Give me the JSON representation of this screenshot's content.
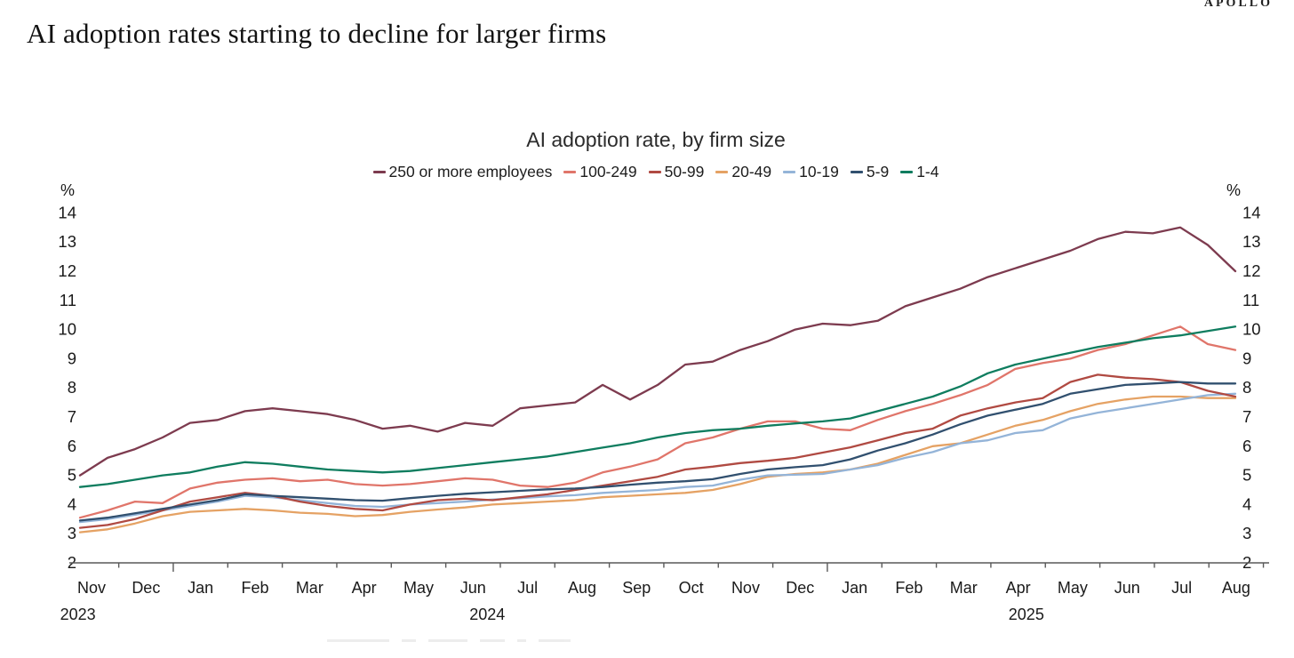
{
  "header": {
    "title": "AI adoption rates starting to decline for larger firms",
    "logo": "APOLLO"
  },
  "chart_data": {
    "type": "line",
    "title": "AI adoption rate, by firm size",
    "y_unit": "%",
    "ylim": [
      2,
      14
    ],
    "y_ticks": [
      2,
      3,
      4,
      5,
      6,
      7,
      8,
      9,
      10,
      11,
      12,
      13,
      14
    ],
    "grid": false,
    "legend_position": "top",
    "x_start": "Nov 2023",
    "x_end": "Aug 2025",
    "points_per_month": 2,
    "x_month_labels": [
      "Nov",
      "Dec",
      "Jan",
      "Feb",
      "Mar",
      "Apr",
      "May",
      "Jun",
      "Jul",
      "Aug",
      "Sep",
      "Oct",
      "Nov",
      "Dec",
      "Jan",
      "Feb",
      "Mar",
      "Apr",
      "May",
      "Jun",
      "Jul",
      "Aug"
    ],
    "x_year_labels": [
      {
        "label": "2023",
        "position_month_index": -0.25
      },
      {
        "label": "2024",
        "position_month_index": 7.26
      },
      {
        "label": "2025",
        "position_month_index": 17.15
      }
    ],
    "series": [
      {
        "name": "250 or more employees",
        "color": "#7d3b4f",
        "values": [
          5.0,
          5.6,
          5.9,
          6.3,
          6.8,
          6.9,
          7.2,
          7.3,
          7.2,
          7.1,
          6.9,
          6.6,
          6.7,
          6.5,
          6.8,
          6.7,
          7.3,
          7.4,
          7.5,
          8.1,
          7.6,
          8.1,
          8.8,
          8.9,
          9.3,
          9.6,
          10.0,
          10.2,
          10.15,
          10.3,
          10.8,
          11.1,
          11.4,
          11.8,
          12.1,
          12.4,
          12.7,
          13.1,
          13.35,
          13.3,
          13.5,
          12.9,
          12.0
        ]
      },
      {
        "name": "100-249",
        "color": "#e0756a",
        "values": [
          3.55,
          3.8,
          4.1,
          4.05,
          4.55,
          4.75,
          4.85,
          4.9,
          4.8,
          4.85,
          4.7,
          4.65,
          4.7,
          4.8,
          4.9,
          4.85,
          4.65,
          4.6,
          4.75,
          5.1,
          5.3,
          5.55,
          6.1,
          6.3,
          6.6,
          6.85,
          6.85,
          6.6,
          6.55,
          6.9,
          7.2,
          7.45,
          7.75,
          8.1,
          8.65,
          8.85,
          9.0,
          9.3,
          9.5,
          9.8,
          10.1,
          9.5,
          9.3
        ]
      },
      {
        "name": "50-99",
        "color": "#b04a42",
        "values": [
          3.2,
          3.3,
          3.5,
          3.8,
          4.1,
          4.25,
          4.4,
          4.3,
          4.1,
          3.95,
          3.85,
          3.8,
          4.0,
          4.15,
          4.2,
          4.15,
          4.25,
          4.35,
          4.5,
          4.65,
          4.8,
          4.95,
          5.2,
          5.3,
          5.42,
          5.5,
          5.6,
          5.78,
          5.96,
          6.2,
          6.45,
          6.6,
          7.05,
          7.3,
          7.5,
          7.65,
          8.2,
          8.45,
          8.35,
          8.3,
          8.2,
          7.9,
          7.7
        ]
      },
      {
        "name": "20-49",
        "color": "#e5a264",
        "values": [
          3.05,
          3.15,
          3.35,
          3.6,
          3.75,
          3.8,
          3.85,
          3.8,
          3.72,
          3.68,
          3.6,
          3.64,
          3.75,
          3.83,
          3.9,
          4.0,
          4.05,
          4.1,
          4.15,
          4.25,
          4.3,
          4.35,
          4.4,
          4.5,
          4.7,
          4.95,
          5.05,
          5.1,
          5.2,
          5.4,
          5.7,
          6.0,
          6.1,
          6.4,
          6.7,
          6.9,
          7.2,
          7.45,
          7.6,
          7.7,
          7.7,
          7.65,
          7.65
        ]
      },
      {
        "name": "10-19",
        "color": "#94b4d8",
        "values": [
          3.4,
          3.5,
          3.65,
          3.8,
          3.95,
          4.1,
          4.3,
          4.25,
          4.15,
          4.05,
          3.95,
          3.92,
          4.0,
          4.05,
          4.1,
          4.17,
          4.22,
          4.28,
          4.32,
          4.4,
          4.45,
          4.5,
          4.6,
          4.65,
          4.85,
          5.0,
          5.02,
          5.05,
          5.2,
          5.35,
          5.6,
          5.8,
          6.1,
          6.2,
          6.45,
          6.55,
          6.95,
          7.15,
          7.3,
          7.45,
          7.6,
          7.75,
          7.8
        ]
      },
      {
        "name": "5-9",
        "color": "#31506f",
        "values": [
          3.45,
          3.55,
          3.7,
          3.85,
          4.0,
          4.15,
          4.35,
          4.3,
          4.25,
          4.2,
          4.15,
          4.13,
          4.22,
          4.3,
          4.37,
          4.42,
          4.47,
          4.52,
          4.55,
          4.6,
          4.68,
          4.75,
          4.8,
          4.87,
          5.05,
          5.2,
          5.28,
          5.35,
          5.55,
          5.85,
          6.1,
          6.4,
          6.75,
          7.05,
          7.25,
          7.45,
          7.8,
          7.95,
          8.1,
          8.15,
          8.2,
          8.15,
          8.15
        ]
      },
      {
        "name": "1-4",
        "color": "#0f7d5f",
        "values": [
          4.6,
          4.7,
          4.85,
          5.0,
          5.1,
          5.3,
          5.45,
          5.4,
          5.3,
          5.2,
          5.15,
          5.1,
          5.15,
          5.25,
          5.35,
          5.45,
          5.55,
          5.65,
          5.8,
          5.95,
          6.1,
          6.3,
          6.45,
          6.55,
          6.6,
          6.7,
          6.78,
          6.85,
          6.95,
          7.2,
          7.45,
          7.7,
          8.05,
          8.5,
          8.8,
          9.0,
          9.2,
          9.4,
          9.55,
          9.7,
          9.8,
          9.95,
          10.1
        ]
      }
    ]
  }
}
